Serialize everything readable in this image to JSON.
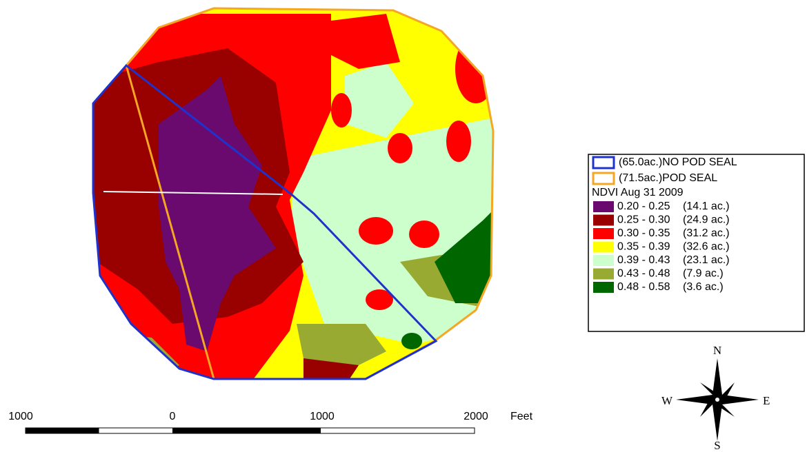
{
  "legend": {
    "boundaries": [
      {
        "label": "(65.0ac.)NO POD SEAL",
        "color": "#1f33cc"
      },
      {
        "label": "(71.5ac.)POD SEAL",
        "color": "#f5a623"
      }
    ],
    "title": "NDVI Aug 31 2009",
    "classes": [
      {
        "range": "0.20 - 0.25",
        "area": "(14.1 ac.)",
        "color": "#6a0a6e"
      },
      {
        "range": "0.25 - 0.30",
        "area": "(24.9 ac.)",
        "color": "#990000"
      },
      {
        "range": "0.30 - 0.35",
        "area": "(31.2 ac.)",
        "color": "#ff0000"
      },
      {
        "range": "0.35 - 0.39",
        "area": "(32.6 ac.)",
        "color": "#ffff00"
      },
      {
        "range": "0.39 - 0.43",
        "area": "(23.1 ac.)",
        "color": "#ccffcc"
      },
      {
        "range": "0.43 - 0.48",
        "area": "(7.9 ac.)",
        "color": "#99aa33"
      },
      {
        "range": "0.48 - 0.58",
        "area": "(3.6 ac.)",
        "color": "#006600"
      }
    ]
  },
  "compass": {
    "north": "N",
    "south": "S",
    "east": "E",
    "west": "W"
  },
  "scale_bar": {
    "labels": [
      "1000",
      "0",
      "1000",
      "2000"
    ],
    "unit": "Feet"
  }
}
